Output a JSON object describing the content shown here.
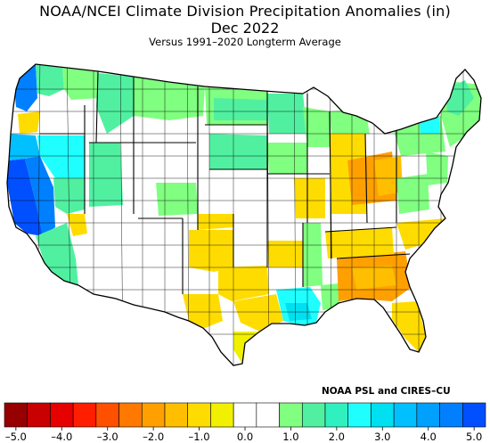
{
  "header": {
    "title": "NOAA/NCEI Climate Division Precipitation Anomalies (in)",
    "period": "Dec 2022",
    "subtitle": "Versus 1991–2020 Longterm Average"
  },
  "credit": "NOAA PSL and CIRES–CU",
  "legend": {
    "range": [
      -5.0,
      5.0
    ],
    "step": 0.5,
    "colors": [
      "#960000",
      "#c80000",
      "#e60000",
      "#ff1e00",
      "#ff5000",
      "#ff7800",
      "#ffa000",
      "#ffbe00",
      "#ffdc00",
      "#f0f000",
      "#ffffff",
      "#ffffff",
      "#80ff80",
      "#50f0a0",
      "#30f0c0",
      "#20ffff",
      "#00e0f0",
      "#00c0ff",
      "#00a0ff",
      "#0080ff",
      "#0050ff"
    ],
    "tick_labels": [
      "–5.0",
      "–4.0",
      "–3.0",
      "–2.0",
      "–1.0",
      "0.0",
      "1.0",
      "2.0",
      "3.0",
      "4.0",
      "5.0"
    ],
    "tick_values": [
      -5,
      -4,
      -3,
      -2,
      -1,
      0,
      1,
      2,
      3,
      4,
      5
    ]
  },
  "map": {
    "region": "Contiguous United States",
    "boundaries": [
      "state borders",
      "climate divisions"
    ],
    "anomaly_zones": [
      {
        "area": "Central California coast",
        "color": "#0050ff"
      },
      {
        "area": "Northern California / Sierra",
        "color": "#0080ff"
      },
      {
        "area": "Northern California interior",
        "color": "#00c0ff"
      },
      {
        "area": "Northern Nevada",
        "color": "#20ffff"
      },
      {
        "area": "Southern California",
        "color": "#50f0a0"
      },
      {
        "area": "Western Washington coast",
        "color": "#0080ff"
      },
      {
        "area": "Southern Oregon",
        "color": "#ffdc00"
      },
      {
        "area": "Upper Midwest",
        "color": "#50f0a0"
      },
      {
        "area": "Southern Plains",
        "color": "#ffdc00"
      },
      {
        "area": "West Texas",
        "color": "#ffdc00"
      },
      {
        "area": "Louisiana",
        "color": "#20ffff"
      },
      {
        "area": "Southeast Atlantic",
        "color": "#ffa000"
      },
      {
        "area": "Ohio Valley",
        "color": "#ffa000"
      },
      {
        "area": "Florida",
        "color": "#ffdc00"
      },
      {
        "area": "New England",
        "color": "#50f0a0"
      },
      {
        "area": "Northern Maine",
        "color": "#20ffff"
      }
    ]
  }
}
